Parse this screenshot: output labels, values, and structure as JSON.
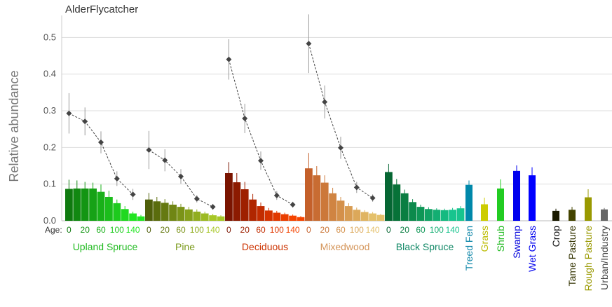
{
  "chart_data": {
    "type": "bar",
    "title": "AlderFlycatcher",
    "ylabel": "Relative abundance",
    "xlabel": "",
    "ylim": [
      0,
      0.56
    ],
    "yticks": [
      "0.0",
      "0.1",
      "0.2",
      "0.3",
      "0.4",
      "0.5"
    ],
    "grid": "horizontal",
    "age_label": "Age:",
    "age_ticks": [
      "0",
      "20",
      "60",
      "100",
      "140"
    ],
    "forest_groups": [
      {
        "name": "Upland Spruce",
        "label_color": "#22bb22",
        "bar_colors": [
          "#0f7a0f",
          "#118811",
          "#139513",
          "#16a216",
          "#18b018",
          "#1bbd1b",
          "#1dca1d",
          "#20d820",
          "#22e522"
        ],
        "values": [
          0.087,
          0.088,
          0.088,
          0.088,
          0.079,
          0.065,
          0.048,
          0.032,
          0.02,
          0.012
        ],
        "errors": [
          0.025,
          0.022,
          0.018,
          0.016,
          0.02,
          0.017,
          0.01,
          0.008,
          0.005,
          0.004
        ],
        "trend": [
          0.293,
          0.271,
          0.214,
          0.115,
          0.072
        ],
        "trend_err": [
          0.055,
          0.038,
          0.03,
          0.02,
          0.015
        ]
      },
      {
        "name": "Pine",
        "label_color": "#7a9a1a",
        "bar_colors": [
          "#4f5f0a",
          "#5a6c0d",
          "#657911",
          "#708614",
          "#7b9318",
          "#86a01b",
          "#91ad1f",
          "#9cba22",
          "#a7c726"
        ],
        "values": [
          0.058,
          0.053,
          0.049,
          0.044,
          0.038,
          0.031,
          0.025,
          0.02,
          0.015,
          0.012
        ],
        "errors": [
          0.018,
          0.012,
          0.01,
          0.009,
          0.008,
          0.007,
          0.006,
          0.005,
          0.004,
          0.003
        ],
        "trend": [
          0.193,
          0.165,
          0.121,
          0.06,
          0.038
        ],
        "trend_err": [
          0.052,
          0.03,
          0.02,
          0.01,
          0.008
        ]
      },
      {
        "name": "Deciduous",
        "label_color": "#cc3300",
        "bar_colors": [
          "#7a1400",
          "#8c1a00",
          "#9e2000",
          "#b02600",
          "#c22c00",
          "#d43200",
          "#e03800",
          "#ea3e00",
          "#f54400"
        ],
        "values": [
          0.13,
          0.105,
          0.086,
          0.058,
          0.04,
          0.028,
          0.022,
          0.018,
          0.014,
          0.01
        ],
        "errors": [
          0.03,
          0.025,
          0.02,
          0.015,
          0.01,
          0.007,
          0.005,
          0.004,
          0.003,
          0.003
        ],
        "trend": [
          0.44,
          0.279,
          0.164,
          0.069,
          0.044
        ],
        "trend_err": [
          0.055,
          0.04,
          0.025,
          0.012,
          0.008
        ]
      },
      {
        "name": "Mixedwood",
        "label_color": "#d4955a",
        "bar_colors": [
          "#c4602a",
          "#c86c32",
          "#cc783a",
          "#d08442",
          "#d4904a",
          "#d89c52",
          "#dca85a",
          "#e0b462",
          "#e4c06a"
        ],
        "values": [
          0.143,
          0.124,
          0.104,
          0.075,
          0.055,
          0.04,
          0.03,
          0.024,
          0.02,
          0.016
        ],
        "errors": [
          0.042,
          0.025,
          0.02,
          0.015,
          0.01,
          0.008,
          0.006,
          0.005,
          0.004,
          0.003
        ],
        "trend": [
          0.483,
          0.324,
          0.199,
          0.091,
          0.062
        ],
        "trend_err": [
          0.08,
          0.045,
          0.03,
          0.015,
          0.01
        ]
      },
      {
        "name": "Black Spruce",
        "label_color": "#118866",
        "bar_colors": [
          "#066633",
          "#077238",
          "#0a7e42",
          "#0c8a4c",
          "#0e9656",
          "#11a264",
          "#13ae72",
          "#15ba80",
          "#17c48e"
        ],
        "values": [
          0.133,
          0.099,
          0.075,
          0.051,
          0.038,
          0.032,
          0.03,
          0.029,
          0.03,
          0.034
        ],
        "errors": [
          0.022,
          0.015,
          0.01,
          0.008,
          0.006,
          0.005,
          0.004,
          0.004,
          0.005,
          0.006
        ],
        "trend": null,
        "trend_err": null
      }
    ],
    "other_habitats": [
      {
        "name": "Treed Fen",
        "value": 0.098,
        "error": 0.012,
        "color": "#0088aa",
        "label_color": "#1188aa"
      },
      {
        "name": "Grass",
        "value": 0.045,
        "error": 0.018,
        "color": "#cccc00",
        "label_color": "#bbbb00"
      },
      {
        "name": "Shrub",
        "value": 0.088,
        "error": 0.025,
        "color": "#22cc22",
        "label_color": "#22bb22"
      },
      {
        "name": "Swamp",
        "value": 0.136,
        "error": 0.015,
        "color": "#0000ee",
        "label_color": "#0000dd"
      },
      {
        "name": "Wet Grass",
        "value": 0.124,
        "error": 0.022,
        "color": "#0000ff",
        "label_color": "#0000ee"
      },
      {
        "name": "Crop",
        "value": 0.027,
        "error": 0.006,
        "color": "#1a1a00",
        "label_color": "#111111"
      },
      {
        "name": "Tame Pasture",
        "value": 0.03,
        "error": 0.008,
        "color": "#444400",
        "label_color": "#333300"
      },
      {
        "name": "Rough Pasture",
        "value": 0.064,
        "error": 0.022,
        "color": "#999900",
        "label_color": "#999900"
      },
      {
        "name": "Urban/Industry",
        "value": 0.031,
        "error": 0.004,
        "color": "#666666",
        "label_color": "#444444"
      }
    ]
  }
}
